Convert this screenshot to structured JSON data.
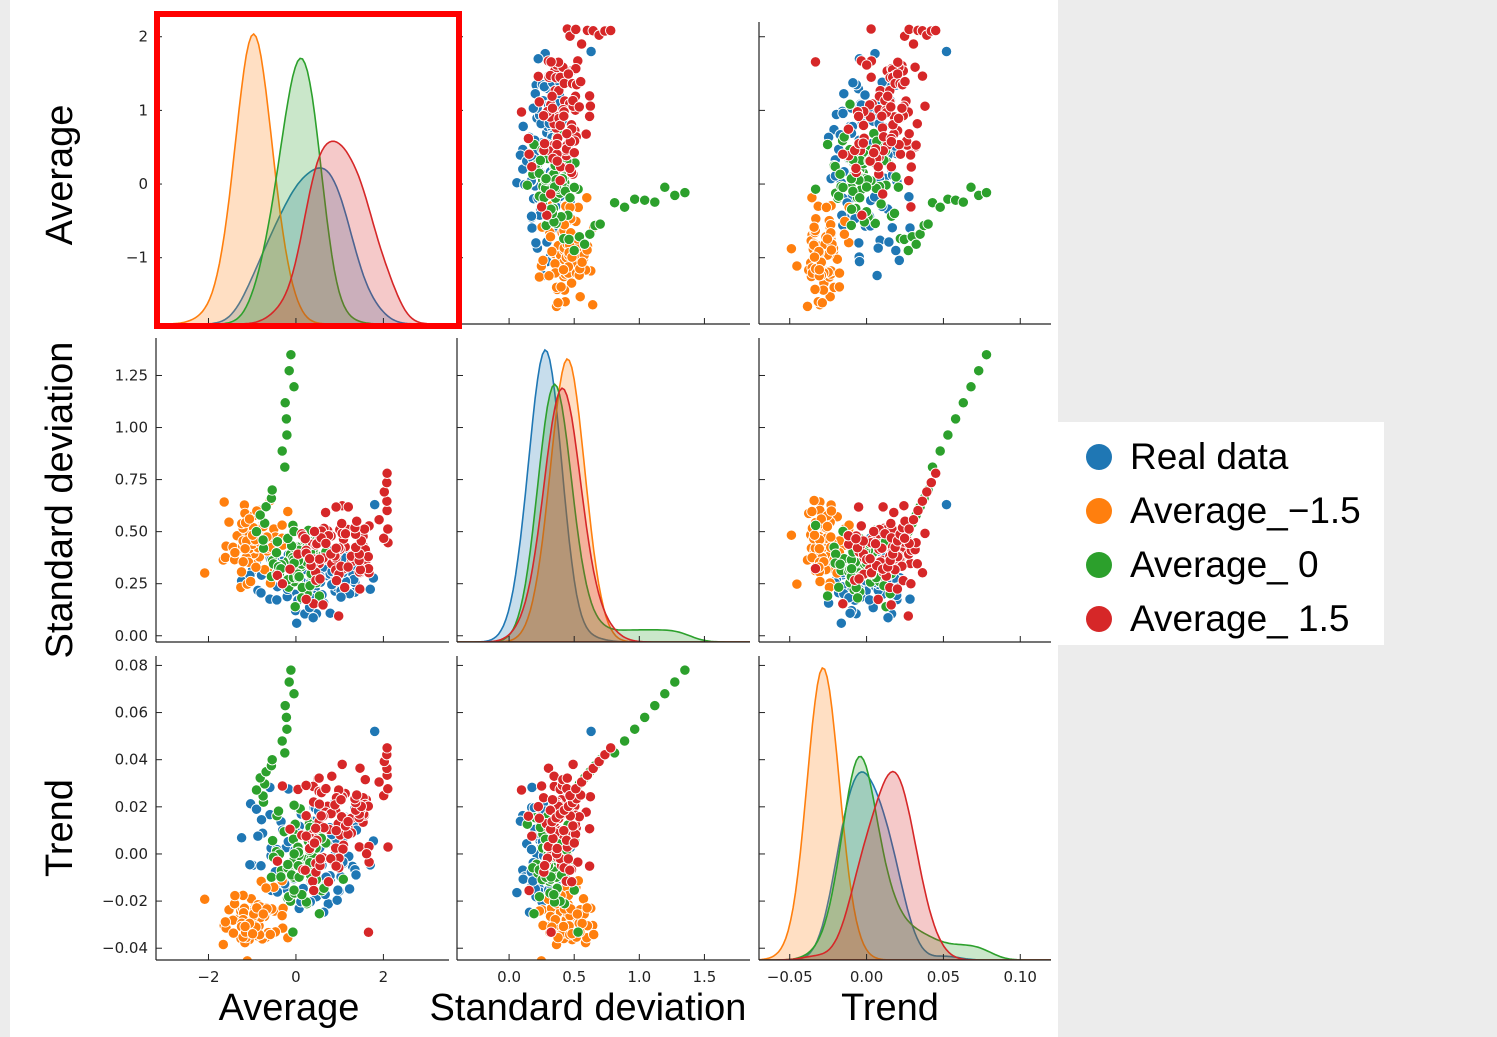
{
  "chart_data": {
    "type": "pairplot",
    "variables": [
      "Average",
      "Standard deviation",
      "Trend"
    ],
    "axes": {
      "Average": {
        "range": [
          -3.2,
          3.5
        ],
        "ticks": [
          -2,
          0,
          2
        ],
        "y_range": [
          -1.9,
          2.2
        ],
        "y_ticks": [
          -1,
          0,
          1,
          2
        ],
        "tick_labels": [
          "−2",
          "0",
          "2"
        ],
        "y_tick_labels": [
          "−1",
          "0",
          "1",
          "2"
        ]
      },
      "Standard deviation": {
        "range": [
          -0.4,
          1.85
        ],
        "ticks": [
          0.0,
          0.5,
          1.0,
          1.5
        ],
        "y_range": [
          -0.03,
          1.43
        ],
        "y_ticks": [
          0.0,
          0.25,
          0.5,
          0.75,
          1.0,
          1.25
        ],
        "tick_labels": [
          "0.0",
          "0.5",
          "1.0",
          "1.5"
        ],
        "y_tick_labels": [
          "0.00",
          "0.25",
          "0.50",
          "0.75",
          "1.00",
          "1.25"
        ]
      },
      "Trend": {
        "range": [
          -0.07,
          0.12
        ],
        "ticks": [
          -0.05,
          0.0,
          0.05,
          0.1
        ],
        "y_range": [
          -0.045,
          0.084
        ],
        "y_ticks": [
          -0.04,
          -0.02,
          0.0,
          0.02,
          0.04,
          0.06,
          0.08
        ],
        "tick_labels": [
          "−0.05",
          "0.00",
          "0.05",
          "0.10"
        ],
        "y_tick_labels": [
          "−0.04",
          "−0.02",
          "0.00",
          "0.02",
          "0.04",
          "0.06",
          "0.08"
        ]
      }
    },
    "series": [
      {
        "name": "Real data",
        "color": "#1f77b4",
        "n": 100,
        "avg": [
          0.25,
          0.75
        ],
        "sd": [
          0.27,
          0.08
        ],
        "trend": [
          0.0,
          0.013
        ],
        "outliers": [
          [
            1.8,
            0.63,
            0.052
          ]
        ]
      },
      {
        "name": "Average_−1.5",
        "color": "#ff7f0e",
        "n": 85,
        "avg": [
          -0.9,
          0.35
        ],
        "sd": [
          0.44,
          0.09
        ],
        "trend": [
          -0.028,
          0.006
        ]
      },
      {
        "name": "Average_ 0",
        "color": "#2ca02c",
        "n": 85,
        "avg": [
          0.1,
          0.3
        ],
        "sd": [
          0.35,
          0.08
        ],
        "trend": [
          -0.005,
          0.011
        ],
        "tail": [
          [
            -0.85,
            0.7,
            0.04
          ],
          [
            -0.25,
            1.35,
            0.078
          ]
        ]
      },
      {
        "name": "Average_ 1.5",
        "color": "#d62728",
        "n": 85,
        "avg": [
          0.9,
          0.5
        ],
        "sd": [
          0.38,
          0.1
        ],
        "trend": [
          0.015,
          0.012
        ],
        "tail": [
          [
            1.3,
            0.55,
            0.025
          ],
          [
            1.95,
            0.78,
            0.045
          ]
        ]
      }
    ],
    "highlight": {
      "row": 0,
      "col": 0,
      "color": "#ff0000"
    }
  }
}
